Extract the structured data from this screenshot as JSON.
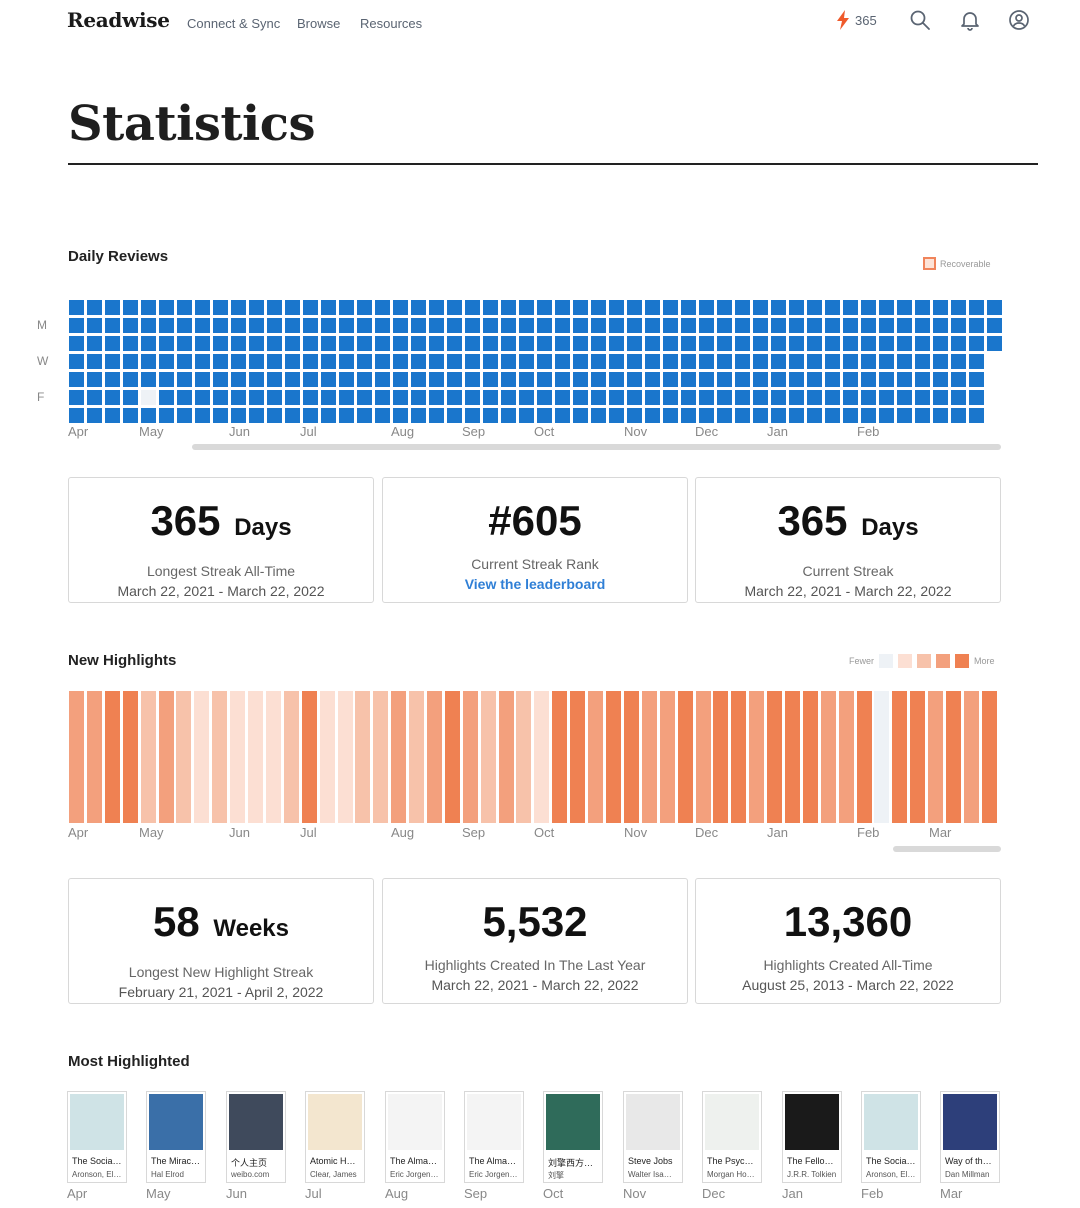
{
  "nav": {
    "logo": "Readwise",
    "links": [
      "Connect & Sync",
      "Browse",
      "Resources"
    ],
    "streak_count": "365",
    "icons": [
      "lightning-icon",
      "search-icon",
      "bell-icon",
      "user-icon"
    ]
  },
  "page": {
    "title": "Statistics"
  },
  "daily_reviews": {
    "title": "Daily Reviews",
    "legend": "Recoverable",
    "day_labels": [
      "M",
      "W",
      "F"
    ],
    "months": [
      "Apr",
      "May",
      "Jun",
      "Jul",
      "Aug",
      "Sep",
      "Oct",
      "Nov",
      "Dec",
      "Jan",
      "Feb"
    ],
    "colors": {
      "reviewed": "#1a76cc",
      "missed": "#eef2f6"
    }
  },
  "review_stats": [
    {
      "value": "365",
      "unit": "Days",
      "label": "Longest Streak All-Time",
      "sub": "March 22, 2021 - March 22, 2022"
    },
    {
      "value": "#605",
      "unit": "",
      "label": "Current Streak Rank",
      "link": "View the leaderboard"
    },
    {
      "value": "365",
      "unit": "Days",
      "label": "Current Streak",
      "sub": "March 22, 2021 - March 22, 2022"
    }
  ],
  "new_highlights": {
    "title": "New Highlights",
    "legend_fewer": "Fewer",
    "legend_more": "More",
    "scale_colors": [
      "#eef2f6",
      "#fcdfd3",
      "#f7c2aa",
      "#f3a07d",
      "#ef8152"
    ],
    "levels": [
      3,
      3,
      4,
      4,
      2,
      3,
      2,
      1,
      2,
      1,
      1,
      1,
      2,
      4,
      1,
      1,
      2,
      2,
      3,
      2,
      3,
      4,
      3,
      2,
      3,
      2,
      1,
      4,
      4,
      3,
      4,
      4,
      3,
      3,
      4,
      3,
      4,
      4,
      3,
      4,
      4,
      4,
      3,
      3,
      4,
      0,
      4,
      4,
      3,
      4,
      3,
      4
    ],
    "months": [
      "Apr",
      "May",
      "Jun",
      "Jul",
      "Aug",
      "Sep",
      "Oct",
      "Nov",
      "Dec",
      "Jan",
      "Feb",
      "Mar"
    ]
  },
  "highlight_stats": [
    {
      "value": "58",
      "unit": "Weeks",
      "label": "Longest New Highlight Streak",
      "sub": "February 21, 2021 - April 2, 2022"
    },
    {
      "value": "5,532",
      "unit": "",
      "label": "Highlights Created In The Last Year",
      "sub": "March 22, 2021 - March 22, 2022"
    },
    {
      "value": "13,360",
      "unit": "",
      "label": "Highlights Created All-Time",
      "sub": "August 25, 2013 - March 22, 2022"
    }
  ],
  "most_highlighted": {
    "title": "Most Highlighted",
    "books": [
      {
        "title": "The Socia…",
        "author": "Aronson, El…",
        "month": "Apr",
        "cover": "#cfe3e6"
      },
      {
        "title": "The Mirac…",
        "author": "Hal Elrod",
        "month": "May",
        "cover": "#3a6fa8"
      },
      {
        "title": "个人主页",
        "author": "weibo.com",
        "month": "Jun",
        "cover": "#3f4a5c"
      },
      {
        "title": "Atomic H…",
        "author": "Clear, James",
        "month": "Jul",
        "cover": "#f3e6cf"
      },
      {
        "title": "The Alma…",
        "author": "Eric Jorgen…",
        "month": "Aug",
        "cover": "#f4f4f4"
      },
      {
        "title": "The Alma…",
        "author": "Eric Jorgen…",
        "month": "Sep",
        "cover": "#f4f4f4"
      },
      {
        "title": "刘擎西方…",
        "author": "刘擎",
        "month": "Oct",
        "cover": "#2f6b5a"
      },
      {
        "title": "Steve Jobs",
        "author": "Walter Isa…",
        "month": "Nov",
        "cover": "#e8e8e8"
      },
      {
        "title": "The Psyc…",
        "author": "Morgan Ho…",
        "month": "Dec",
        "cover": "#eef1ee"
      },
      {
        "title": "The Fello…",
        "author": "J.R.R. Tolkien",
        "month": "Jan",
        "cover": "#1a1a1a"
      },
      {
        "title": "The Socia…",
        "author": "Aronson, El…",
        "month": "Feb",
        "cover": "#cfe3e6"
      },
      {
        "title": "Way of th…",
        "author": "Dan Millman",
        "month": "Mar",
        "cover": "#2d3f7a"
      }
    ]
  }
}
